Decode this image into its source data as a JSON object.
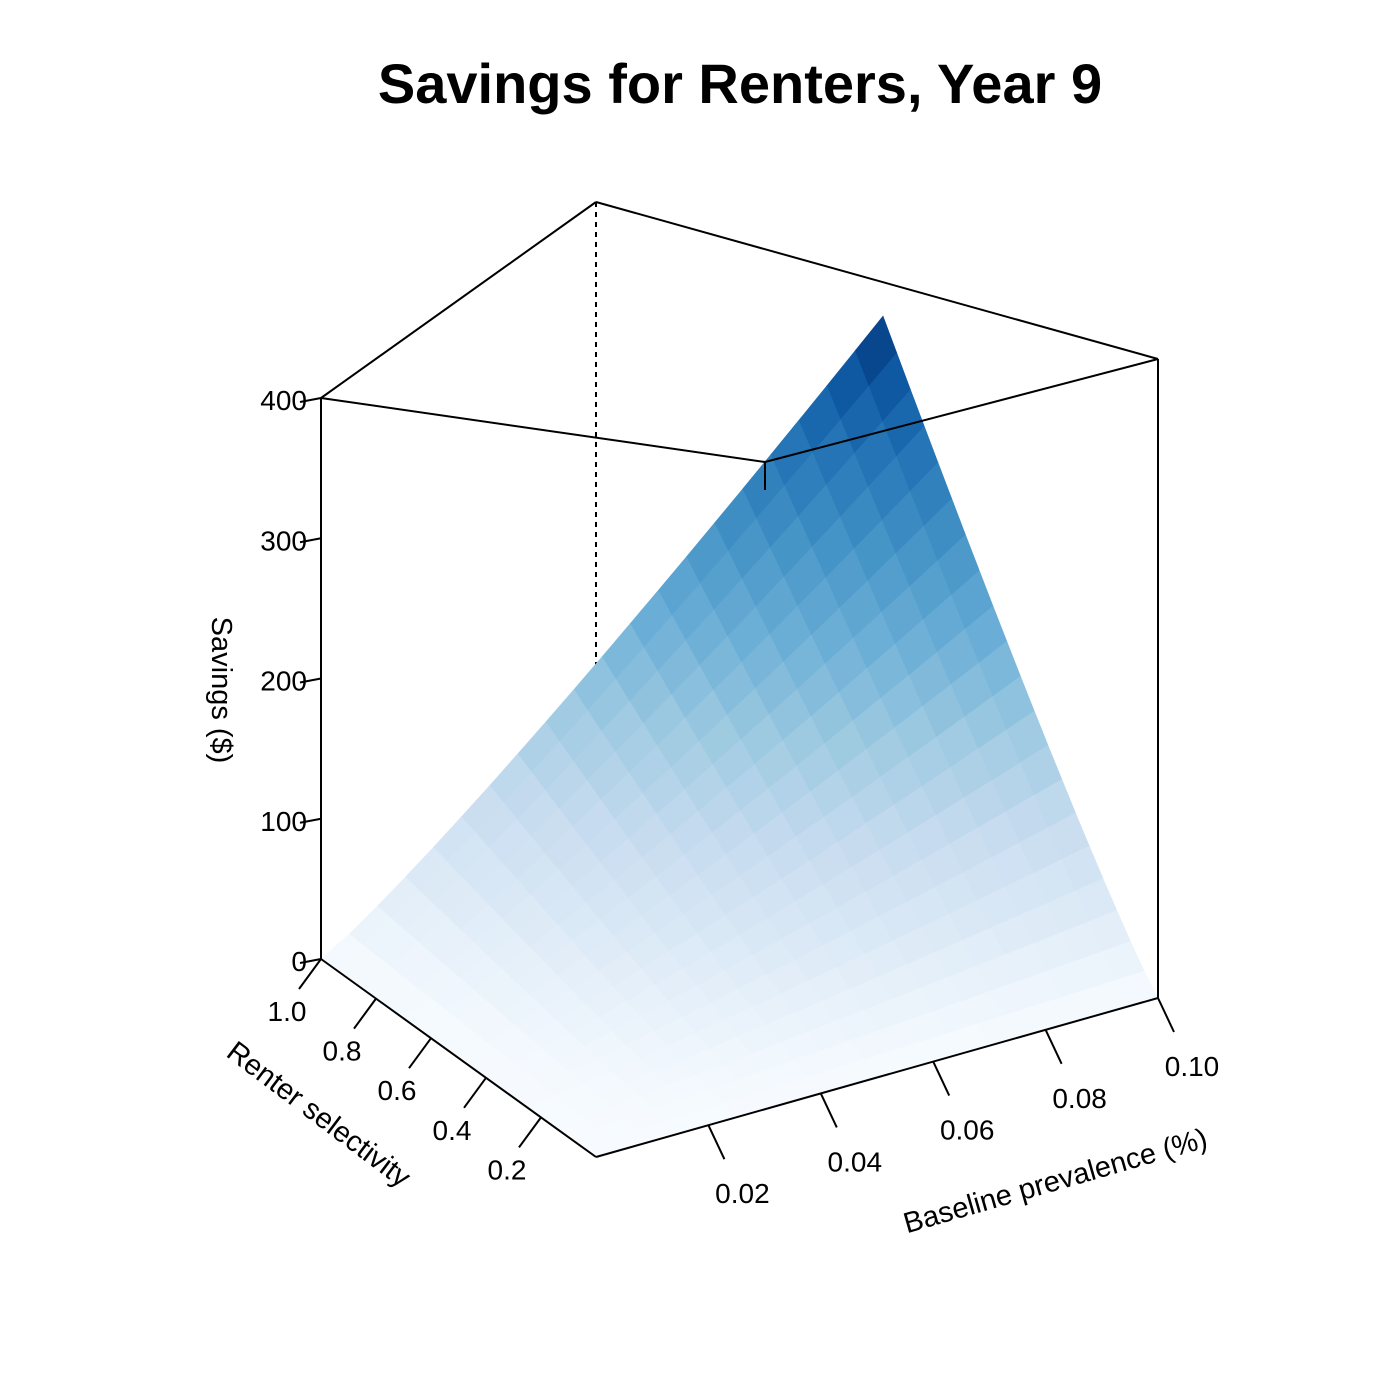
{
  "chart_data": {
    "type": "surface",
    "title": "Savings for Renters, Year 9",
    "xlabel": "Baseline prevalence (%)",
    "ylabel": "Renter selectivity",
    "zlabel": "Savings ($)",
    "x_range": [
      0,
      0.1
    ],
    "y_range": [
      0,
      1.0
    ],
    "zlim": [
      0,
      400
    ],
    "x_ticks": [
      "0.02",
      "0.04",
      "0.06",
      "0.08",
      "0.10"
    ],
    "y_ticks": [
      "0.2",
      "0.4",
      "0.6",
      "0.8",
      "1.0"
    ],
    "z_ticks": [
      "0",
      "100",
      "200",
      "300",
      "400"
    ],
    "grid_steps": 20,
    "max_savings": 345,
    "surface_note_values": [
      {
        "prevalence": 0.1,
        "selectivity": 1.0,
        "savings": 345
      },
      {
        "prevalence": 0.05,
        "selectivity": 0.5,
        "savings": 100
      },
      {
        "prevalence": 0.0,
        "selectivity": 1.0,
        "savings": 0
      },
      {
        "prevalence": 0.1,
        "selectivity": 0.0,
        "savings": 0
      }
    ],
    "colors": {
      "low": "#f7fbff",
      "mid": "#9ecae1",
      "high": "#08306b"
    },
    "grid": false,
    "legend": "none"
  }
}
